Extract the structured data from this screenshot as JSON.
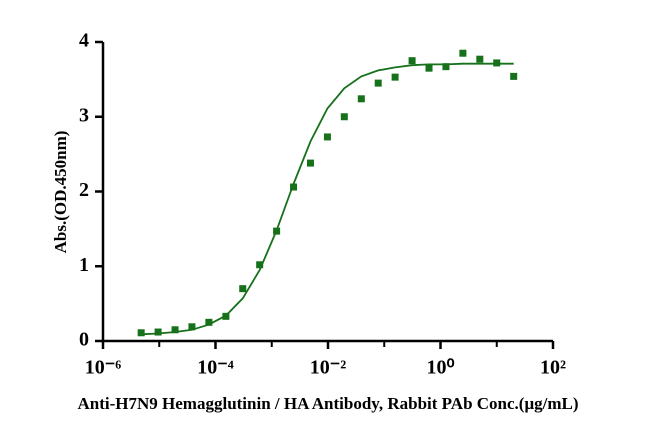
{
  "chart_data": {
    "type": "scatter",
    "x_label": "Anti-H7N9 Hemagglutinin / HA Antibody, Rabbit PAb Conc.(μg/mL)",
    "y_label": "Abs.(OD.450nm)",
    "x_scale": "log",
    "xlim": [
      1e-06,
      100
    ],
    "xticks": [
      {
        "value": 1e-06,
        "label": "10⁻⁶"
      },
      {
        "value": 0.0001,
        "label": "10⁻⁴"
      },
      {
        "value": 0.01,
        "label": "10⁻²"
      },
      {
        "value": 1,
        "label": "10⁰"
      },
      {
        "value": 100,
        "label": "10²"
      }
    ],
    "xminorticks": [
      1e-05,
      0.001,
      0.1,
      10
    ],
    "ylim": [
      0,
      4
    ],
    "yticks": [
      0,
      1,
      2,
      3,
      4
    ],
    "series": [
      {
        "mode": "markers",
        "color": "#17701a",
        "x": [
          4.77e-06,
          9.54e-06,
          1.91e-05,
          3.81e-05,
          7.63e-05,
          0.000153,
          0.000305,
          0.00061,
          0.00122,
          0.00244,
          0.00488,
          0.00977,
          0.0195,
          0.0391,
          0.0781,
          0.156,
          0.3125,
          0.625,
          1.25,
          2.5,
          5,
          10,
          20
        ],
        "values": [
          0.11,
          0.12,
          0.15,
          0.19,
          0.25,
          0.33,
          0.7,
          1.02,
          1.47,
          2.06,
          2.38,
          2.73,
          3.0,
          3.24,
          3.45,
          3.53,
          3.75,
          3.65,
          3.67,
          3.85,
          3.77,
          3.72,
          3.54
        ]
      },
      {
        "mode": "line",
        "color": "#17701a",
        "x": [
          4.77e-06,
          9.54e-06,
          1.91e-05,
          3.81e-05,
          7.63e-05,
          0.000153,
          0.000305,
          0.00061,
          0.00122,
          0.00244,
          0.00488,
          0.00977,
          0.0195,
          0.0391,
          0.0781,
          0.156,
          0.3125,
          0.625,
          1.25,
          2.5,
          5,
          10,
          20
        ],
        "values": [
          0.09,
          0.1,
          0.12,
          0.15,
          0.22,
          0.34,
          0.57,
          0.95,
          1.48,
          2.1,
          2.67,
          3.11,
          3.38,
          3.54,
          3.62,
          3.66,
          3.69,
          3.7,
          3.7,
          3.71,
          3.71,
          3.71,
          3.71
        ]
      }
    ]
  }
}
